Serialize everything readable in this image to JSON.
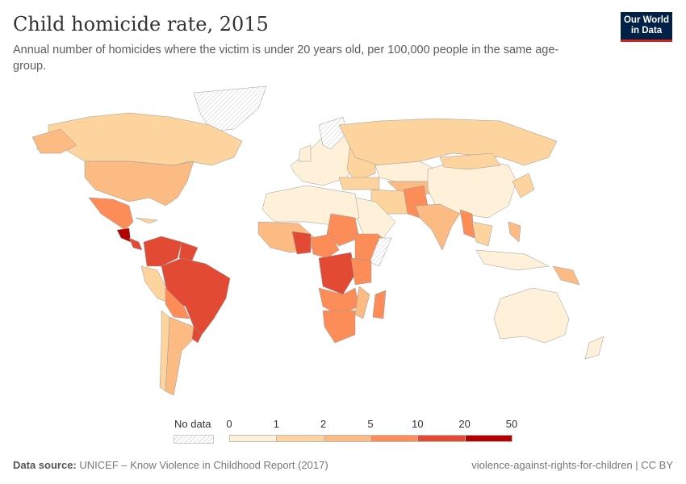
{
  "title": "Child homicide rate, 2015",
  "subtitle": "Annual number of homicides where the victim is under 20 years old, per 100,000 people in the same age-group.",
  "logo": {
    "line1": "Our World",
    "line2": "in Data",
    "bg": "#002147",
    "accent": "#ce261e"
  },
  "footer": {
    "source_label": "Data source:",
    "source": "UNICEF – Know Violence in Childhood Report (2017)",
    "slug": "violence-against-rights-for-children | CC BY"
  },
  "chart_data": {
    "type": "choropleth-map",
    "year": 2015,
    "legend": {
      "no_data_label": "No data",
      "ticks": [
        "0",
        "1",
        "2",
        "5",
        "10",
        "20",
        "50"
      ],
      "bin_colors": [
        "#fef0d9",
        "#fdd49e",
        "#fdbb84",
        "#fc8d59",
        "#e34a33",
        "#b30000"
      ],
      "no_data_pattern": "hatched-grey"
    }
  }
}
